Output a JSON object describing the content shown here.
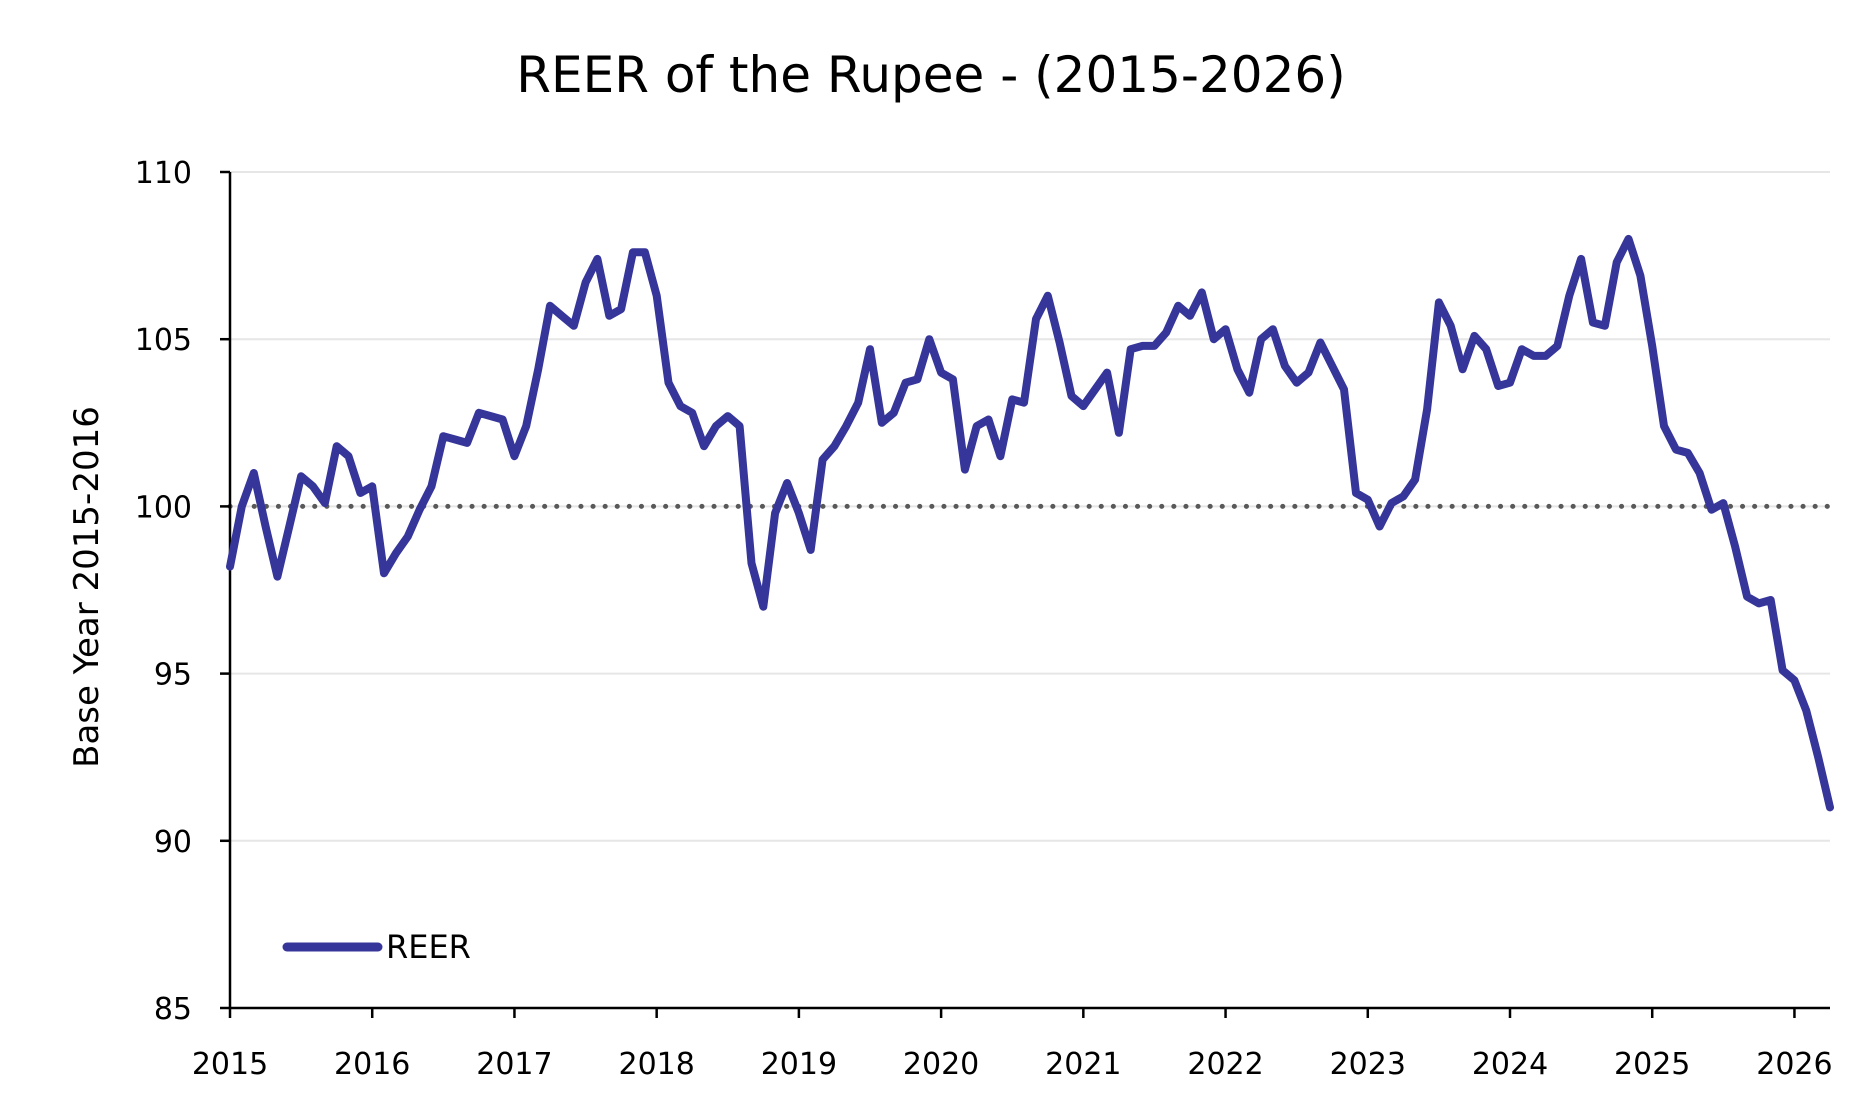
{
  "chart_data": {
    "type": "line",
    "title": "REER of the Rupee - (2015-2026)",
    "xlabel": "",
    "ylabel": "Base Year 2015-2016",
    "xlim": [
      2015.0,
      2026.25
    ],
    "ylim": [
      85,
      110
    ],
    "yticks": [
      85,
      90,
      95,
      100,
      105,
      110
    ],
    "xticks": [
      2015,
      2016,
      2017,
      2018,
      2019,
      2020,
      2021,
      2022,
      2023,
      2024,
      2025,
      2026
    ],
    "ytick_labels": [
      "85",
      "90",
      "95",
      "100",
      "105",
      "110"
    ],
    "xtick_labels": [
      "2015",
      "2016",
      "2017",
      "2018",
      "2019",
      "2020",
      "2021",
      "2022",
      "2023",
      "2024",
      "2025",
      "2026"
    ],
    "grid": "horizontal",
    "legend": "bottom-left",
    "reference_line": {
      "value": 100,
      "style": "dotted",
      "color": "#595959"
    },
    "series": [
      {
        "name": "REER",
        "color": "#35359a",
        "x": [
          2015.0,
          2015.083,
          2015.167,
          2015.25,
          2015.333,
          2015.417,
          2015.5,
          2015.583,
          2015.667,
          2015.75,
          2015.833,
          2015.917,
          2016.0,
          2016.083,
          2016.167,
          2016.25,
          2016.333,
          2016.417,
          2016.5,
          2016.583,
          2016.667,
          2016.75,
          2016.833,
          2016.917,
          2017.0,
          2017.083,
          2017.167,
          2017.25,
          2017.333,
          2017.417,
          2017.5,
          2017.583,
          2017.667,
          2017.75,
          2017.833,
          2017.917,
          2018.0,
          2018.083,
          2018.167,
          2018.25,
          2018.333,
          2018.417,
          2018.5,
          2018.583,
          2018.667,
          2018.75,
          2018.833,
          2018.917,
          2019.0,
          2019.083,
          2019.167,
          2019.25,
          2019.333,
          2019.417,
          2019.5,
          2019.583,
          2019.667,
          2019.75,
          2019.833,
          2019.917,
          2020.0,
          2020.083,
          2020.167,
          2020.25,
          2020.333,
          2020.417,
          2020.5,
          2020.583,
          2020.667,
          2020.75,
          2020.833,
          2020.917,
          2021.0,
          2021.083,
          2021.167,
          2021.25,
          2021.333,
          2021.417,
          2021.5,
          2021.583,
          2021.667,
          2021.75,
          2021.833,
          2021.917,
          2022.0,
          2022.083,
          2022.167,
          2022.25,
          2022.333,
          2022.417,
          2022.5,
          2022.583,
          2022.667,
          2022.75,
          2022.833,
          2022.917,
          2023.0,
          2023.083,
          2023.167,
          2023.25,
          2023.333,
          2023.417,
          2023.5,
          2023.583,
          2023.667,
          2023.75,
          2023.833,
          2023.917,
          2024.0,
          2024.083,
          2024.167,
          2024.25,
          2024.333,
          2024.417,
          2024.5,
          2024.583,
          2024.667,
          2024.75,
          2024.833,
          2024.917,
          2025.0,
          2025.083,
          2025.167,
          2025.25,
          2025.333,
          2025.417,
          2025.5,
          2025.583,
          2025.667,
          2025.75,
          2025.833,
          2025.917,
          2026.0,
          2026.083,
          2026.167,
          2026.25
        ],
        "values": [
          98.2,
          100.0,
          101.0,
          99.4,
          97.9,
          99.4,
          100.9,
          100.6,
          100.1,
          101.8,
          101.5,
          100.4,
          100.6,
          98.0,
          98.6,
          99.1,
          99.9,
          100.6,
          102.1,
          102.0,
          101.9,
          102.8,
          102.7,
          102.6,
          101.5,
          102.4,
          104.1,
          106.0,
          105.7,
          105.4,
          106.7,
          107.4,
          105.7,
          105.9,
          107.6,
          107.6,
          106.3,
          103.7,
          103.0,
          102.8,
          101.8,
          102.4,
          102.7,
          102.4,
          98.3,
          97.0,
          99.8,
          100.7,
          99.8,
          98.7,
          101.4,
          101.8,
          102.4,
          103.1,
          104.7,
          102.5,
          102.8,
          103.7,
          103.8,
          105.0,
          104.0,
          103.8,
          101.1,
          102.4,
          102.6,
          101.5,
          103.2,
          103.1,
          105.6,
          106.3,
          104.9,
          103.3,
          103.0,
          103.5,
          104.0,
          102.2,
          104.7,
          104.8,
          104.8,
          105.2,
          106.0,
          105.7,
          106.4,
          105.0,
          105.3,
          104.1,
          103.4,
          105.0,
          105.3,
          104.2,
          103.7,
          104.0,
          104.9,
          104.2,
          103.5,
          100.4,
          100.2,
          99.4,
          100.1,
          100.3,
          100.8,
          102.9,
          106.1,
          105.4,
          104.1,
          105.1,
          104.7,
          103.6,
          103.7,
          104.7,
          104.5,
          104.5,
          104.8,
          106.3,
          107.4,
          105.5,
          105.4,
          107.3,
          108.0,
          106.9,
          104.8,
          102.4,
          101.7,
          101.6,
          101.0,
          99.9,
          100.1,
          98.8,
          97.3,
          97.1,
          97.2,
          95.1,
          94.8,
          93.9,
          92.5,
          91.0
        ]
      }
    ]
  }
}
